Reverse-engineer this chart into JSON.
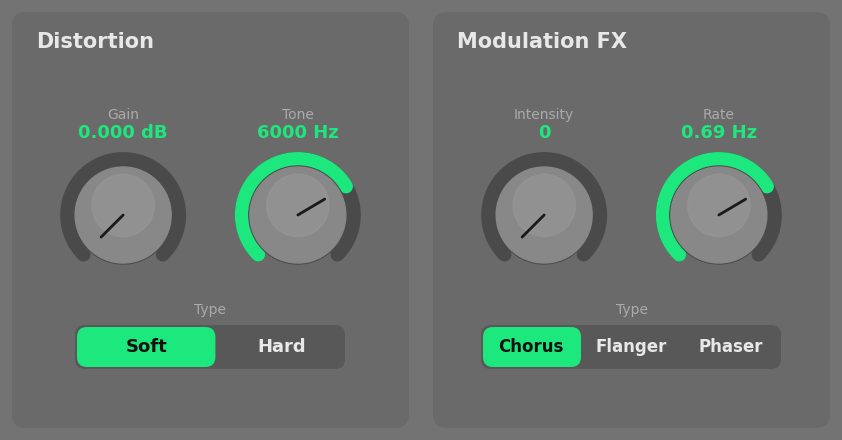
{
  "bg_color": "#737373",
  "panel_left_color": "#6e6e6e",
  "panel_right_color": "#6e6e6e",
  "ring_dark": "#4a4a4a",
  "ring_bg": "#555555",
  "knob_face": "#888888",
  "knob_face_light": "#999999",
  "green_color": "#1de87e",
  "button_bg": "#585858",
  "button_active_color": "#1de87e",
  "text_white": "#e8e8e8",
  "text_gray": "#aaaaaa",
  "text_green": "#1de87e",
  "title_left": "Distortion",
  "title_right": "Modulation FX",
  "gain_label": "Gain",
  "gain_value": "0.000 dB",
  "tone_label": "Tone",
  "tone_value": "6000 Hz",
  "intensity_label": "Intensity",
  "intensity_value": "0",
  "rate_label": "Rate",
  "rate_value": "0.69 Hz",
  "type_label": "Type",
  "left_buttons": [
    "Soft",
    "Hard"
  ],
  "right_buttons": [
    "Chorus",
    "Flanger",
    "Phaser"
  ],
  "gain_fill": 0.0,
  "tone_fill": 0.72,
  "intensity_fill": 0.0,
  "rate_fill": 0.72
}
